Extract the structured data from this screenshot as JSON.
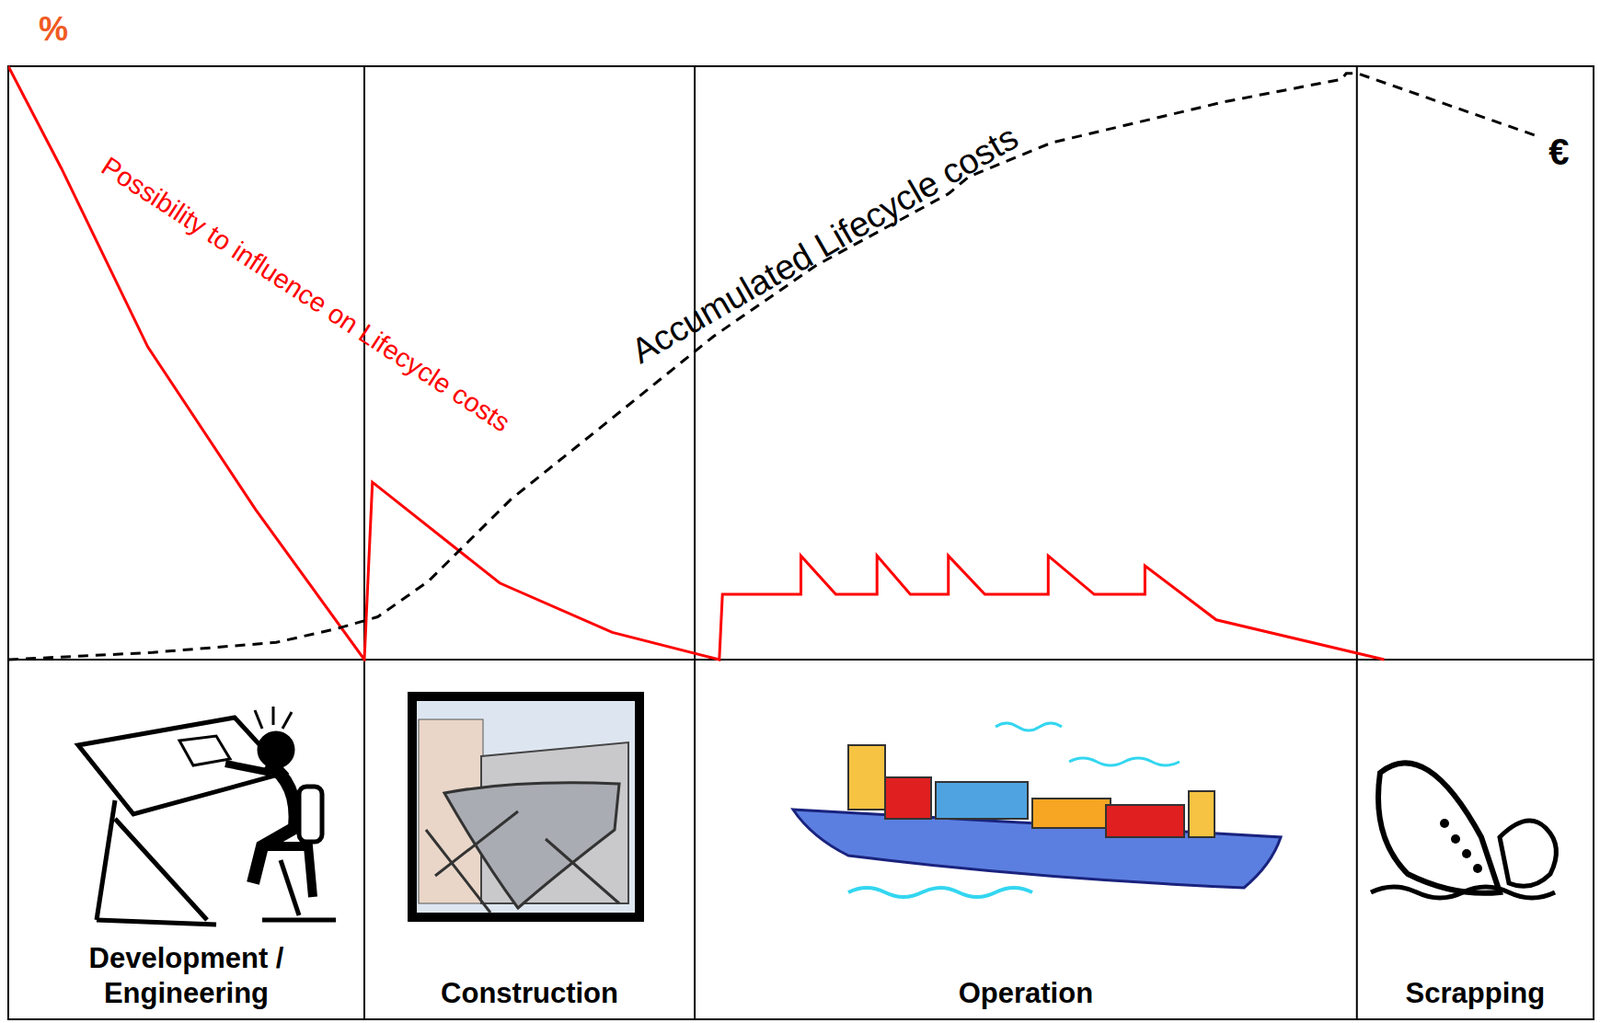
{
  "chart_data": {
    "type": "line",
    "xlim": [
      0,
      100
    ],
    "ylim": [
      0,
      100
    ],
    "y2lim": [
      0,
      100
    ],
    "tick_labels": false,
    "y_label": "%",
    "y2_label": "€",
    "series": [
      {
        "name": "Possibility to influence on Lifecycle costs",
        "color": "#ff0000",
        "line_style": "solid",
        "x": [
          0,
          3.35,
          8.8,
          15.6,
          22.46,
          22.97,
          31.0,
          38.1,
          44.85,
          45.05,
          50.0,
          50.0,
          52.2,
          54.8,
          54.8,
          56.9,
          59.3,
          59.3,
          61.6,
          65.6,
          65.6,
          68.5,
          71.7,
          71.7,
          76.2,
          86.8
        ],
        "values": [
          100,
          82.8,
          52.7,
          25.3,
          0,
          29.9,
          12.9,
          4.6,
          0,
          11,
          11,
          17.5,
          11,
          11,
          17.5,
          11,
          11,
          17.5,
          11,
          11,
          17.5,
          11,
          11,
          15.8,
          6.7,
          0
        ]
      },
      {
        "name": "Accumulated Lifecycle costs",
        "color": "#000000",
        "line_style": "dashed",
        "axis": "y2",
        "x": [
          0,
          9.1,
          16.9,
          20.7,
          23.3,
          26.5,
          31.7,
          38.1,
          44.5,
          51.0,
          59.3,
          60.6,
          65.8,
          76.7,
          84.1,
          84.4,
          85.1,
          96.7
        ],
        "values": [
          0,
          1.2,
          2.9,
          5.2,
          7.2,
          13.2,
          27.0,
          40.7,
          54.5,
          66.5,
          78.5,
          81.4,
          87.1,
          94.0,
          97.8,
          98.8,
          98.8,
          88.0
        ]
      }
    ],
    "phases": [
      {
        "label": "Development / Engineering",
        "start": 0,
        "end": 22.46
      },
      {
        "label": "Construction",
        "start": 22.46,
        "end": 43.3
      },
      {
        "label": "Operation",
        "start": 43.3,
        "end": 85.07
      },
      {
        "label": "Scrapping",
        "start": 85.07,
        "end": 100
      }
    ]
  }
}
